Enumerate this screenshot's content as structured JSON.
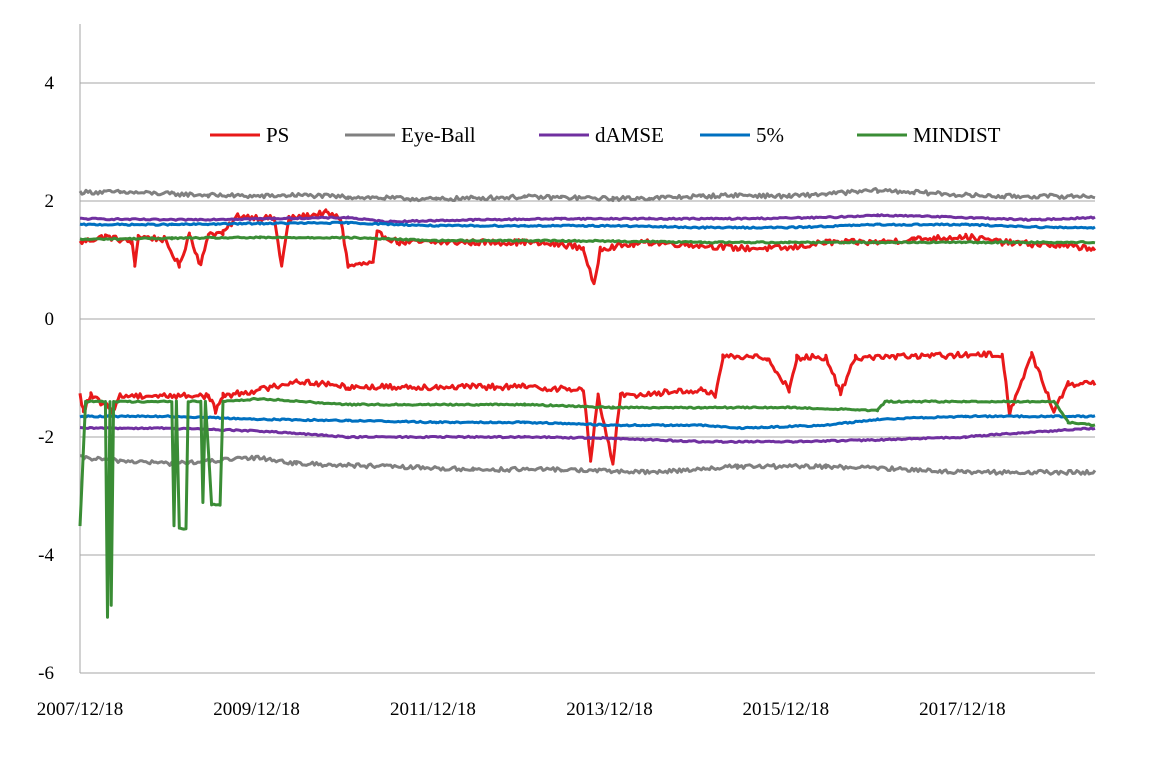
{
  "chart_data": {
    "type": "line",
    "x_type": "date",
    "title": "",
    "xlabel": "",
    "ylabel": "",
    "ylim": [
      -6,
      5
    ],
    "yticks": [
      4,
      2,
      0,
      -2,
      -4,
      -6
    ],
    "ytick_labels": [
      "4",
      "2",
      "0",
      "-2",
      "-4",
      "-6"
    ],
    "xlim": [
      "2007/12/18",
      "2019/06/20"
    ],
    "xticks": [
      "2007/12/18",
      "2009/12/18",
      "2011/12/18",
      "2013/12/18",
      "2015/12/18",
      "2017/12/18"
    ],
    "xtick_labels": [
      "2007/12/18",
      "2009/12/18",
      "2011/12/18",
      "2013/12/18",
      "2015/12/18",
      "2017/12/18"
    ],
    "grid": "horizontal",
    "legend_position": "top-center",
    "series": [
      {
        "name": "PS",
        "color": "#e8191a",
        "band": "upper",
        "points": [
          [
            "2007/12/18",
            1.3
          ],
          [
            "2008/04/01",
            1.4
          ],
          [
            "2008/07/20",
            1.3
          ],
          [
            "2008/08/01",
            0.9
          ],
          [
            "2008/08/15",
            1.4
          ],
          [
            "2008/12/01",
            1.35
          ],
          [
            "2009/02/01",
            0.9
          ],
          [
            "2009/03/15",
            1.45
          ],
          [
            "2009/05/01",
            0.9
          ],
          [
            "2009/06/01",
            1.45
          ],
          [
            "2009/08/01",
            1.45
          ],
          [
            "2009/10/01",
            1.75
          ],
          [
            "2010/03/01",
            1.7
          ],
          [
            "2010/04/01",
            0.9
          ],
          [
            "2010/05/01",
            1.7
          ],
          [
            "2010/10/01",
            1.8
          ],
          [
            "2010/12/01",
            1.7
          ],
          [
            "2011/01/01",
            0.9
          ],
          [
            "2011/04/15",
            0.95
          ],
          [
            "2011/05/01",
            1.45
          ],
          [
            "2011/08/01",
            1.3
          ],
          [
            "2012/06/01",
            1.3
          ],
          [
            "2013/01/01",
            1.3
          ],
          [
            "2013/07/01",
            1.25
          ],
          [
            "2013/09/01",
            1.2
          ],
          [
            "2013/10/15",
            0.55
          ],
          [
            "2013/11/10",
            1.2
          ],
          [
            "2014/06/01",
            1.3
          ],
          [
            "2015/01/01",
            1.25
          ],
          [
            "2015/06/01",
            1.2
          ],
          [
            "2016/01/01",
            1.2
          ],
          [
            "2016/06/01",
            1.3
          ],
          [
            "2017/01/01",
            1.3
          ],
          [
            "2017/06/01",
            1.35
          ],
          [
            "2018/01/01",
            1.4
          ],
          [
            "2018/06/01",
            1.3
          ],
          [
            "2019/01/01",
            1.25
          ],
          [
            "2019/06/20",
            1.2
          ]
        ]
      },
      {
        "name": "Eye-Ball",
        "color": "#808080",
        "band": "upper",
        "points": [
          [
            "2007/12/18",
            2.15
          ],
          [
            "2008/06/01",
            2.15
          ],
          [
            "2009/01/01",
            2.12
          ],
          [
            "2009/06/01",
            2.1
          ],
          [
            "2010/01/01",
            2.08
          ],
          [
            "2010/06/01",
            2.1
          ],
          [
            "2011/01/01",
            2.07
          ],
          [
            "2011/06/01",
            2.05
          ],
          [
            "2012/01/01",
            2.03
          ],
          [
            "2012/06/01",
            2.05
          ],
          [
            "2013/01/01",
            2.07
          ],
          [
            "2013/06/01",
            2.06
          ],
          [
            "2014/01/01",
            2.04
          ],
          [
            "2014/06/01",
            2.05
          ],
          [
            "2015/01/01",
            2.08
          ],
          [
            "2015/06/01",
            2.1
          ],
          [
            "2016/01/01",
            2.08
          ],
          [
            "2016/06/01",
            2.12
          ],
          [
            "2017/01/01",
            2.18
          ],
          [
            "2017/06/01",
            2.15
          ],
          [
            "2018/01/01",
            2.1
          ],
          [
            "2018/06/01",
            2.08
          ],
          [
            "2019/01/01",
            2.08
          ],
          [
            "2019/06/20",
            2.08
          ]
        ]
      },
      {
        "name": "dAMSE",
        "color": "#7030a0",
        "band": "upper",
        "points": [
          [
            "2007/12/18",
            1.7
          ],
          [
            "2009/01/01",
            1.68
          ],
          [
            "2010/01/01",
            1.7
          ],
          [
            "2011/01/01",
            1.72
          ],
          [
            "2011/06/01",
            1.65
          ],
          [
            "2012/06/01",
            1.68
          ],
          [
            "2013/06/01",
            1.7
          ],
          [
            "2014/06/01",
            1.7
          ],
          [
            "2015/06/01",
            1.7
          ],
          [
            "2016/06/01",
            1.72
          ],
          [
            "2017/01/01",
            1.76
          ],
          [
            "2018/01/01",
            1.72
          ],
          [
            "2018/10/01",
            1.68
          ],
          [
            "2019/06/20",
            1.72
          ]
        ]
      },
      {
        "name": "5%",
        "color": "#0070c0",
        "band": "upper",
        "points": [
          [
            "2007/12/18",
            1.6
          ],
          [
            "2009/01/01",
            1.6
          ],
          [
            "2010/01/01",
            1.62
          ],
          [
            "2011/01/01",
            1.63
          ],
          [
            "2012/01/01",
            1.58
          ],
          [
            "2013/01/01",
            1.58
          ],
          [
            "2014/01/01",
            1.58
          ],
          [
            "2015/01/01",
            1.55
          ],
          [
            "2016/01/01",
            1.55
          ],
          [
            "2017/01/01",
            1.6
          ],
          [
            "2018/01/01",
            1.6
          ],
          [
            "2019/01/01",
            1.55
          ],
          [
            "2019/06/20",
            1.55
          ]
        ]
      },
      {
        "name": "MINDIST",
        "color": "#3a8d35",
        "band": "upper",
        "points": [
          [
            "2007/12/18",
            1.35
          ],
          [
            "2009/01/01",
            1.37
          ],
          [
            "2010/01/01",
            1.38
          ],
          [
            "2011/01/01",
            1.38
          ],
          [
            "2012/01/01",
            1.33
          ],
          [
            "2013/01/01",
            1.33
          ],
          [
            "2014/01/01",
            1.32
          ],
          [
            "2015/01/01",
            1.3
          ],
          [
            "2016/01/01",
            1.3
          ],
          [
            "2017/01/01",
            1.3
          ],
          [
            "2018/01/01",
            1.3
          ],
          [
            "2019/06/20",
            1.3
          ]
        ]
      },
      {
        "name": "PS",
        "color": "#e8191a",
        "band": "lower",
        "points": [
          [
            "2007/12/18",
            -1.3
          ],
          [
            "2008/01/01",
            -1.55
          ],
          [
            "2008/02/01",
            -1.3
          ],
          [
            "2008/05/01",
            -1.55
          ],
          [
            "2008/06/01",
            -1.3
          ],
          [
            "2009/06/01",
            -1.3
          ],
          [
            "2009/07/01",
            -1.55
          ],
          [
            "2009/08/01",
            -1.3
          ],
          [
            "2010/01/01",
            -1.2
          ],
          [
            "2010/06/01",
            -1.05
          ],
          [
            "2011/01/01",
            -1.15
          ],
          [
            "2012/01/01",
            -1.15
          ],
          [
            "2013/01/01",
            -1.15
          ],
          [
            "2013/09/01",
            -1.2
          ],
          [
            "2013/10/01",
            -2.4
          ],
          [
            "2013/11/01",
            -1.3
          ],
          [
            "2014/01/01",
            -2.45
          ],
          [
            "2014/02/01",
            -1.3
          ],
          [
            "2015/01/01",
            -1.2
          ],
          [
            "2015/03/01",
            -1.3
          ],
          [
            "2015/04/01",
            -0.65
          ],
          [
            "2015/10/01",
            -0.65
          ],
          [
            "2016/01/01",
            -1.2
          ],
          [
            "2016/02/01",
            -0.65
          ],
          [
            "2016/06/01",
            -0.65
          ],
          [
            "2016/08/01",
            -1.25
          ],
          [
            "2016/10/01",
            -0.65
          ],
          [
            "2018/06/01",
            -0.6
          ],
          [
            "2018/07/01",
            -1.6
          ],
          [
            "2018/10/01",
            -0.6
          ],
          [
            "2019/01/01",
            -1.55
          ],
          [
            "2019/03/01",
            -1.1
          ],
          [
            "2019/06/20",
            -1.1
          ]
        ]
      },
      {
        "name": "Eye-Ball",
        "color": "#808080",
        "band": "lower",
        "points": [
          [
            "2007/12/18",
            -2.35
          ],
          [
            "2008/06/01",
            -2.4
          ],
          [
            "2009/01/01",
            -2.45
          ],
          [
            "2010/01/01",
            -2.35
          ],
          [
            "2010/06/01",
            -2.45
          ],
          [
            "2011/06/01",
            -2.5
          ],
          [
            "2012/06/01",
            -2.55
          ],
          [
            "2013/06/01",
            -2.55
          ],
          [
            "2014/06/01",
            -2.6
          ],
          [
            "2015/06/01",
            -2.5
          ],
          [
            "2016/06/01",
            -2.5
          ],
          [
            "2017/06/01",
            -2.55
          ],
          [
            "2018/01/01",
            -2.6
          ],
          [
            "2018/06/01",
            -2.6
          ],
          [
            "2019/06/20",
            -2.6
          ]
        ]
      },
      {
        "name": "dAMSE",
        "color": "#7030a0",
        "band": "lower",
        "points": [
          [
            "2007/12/18",
            -1.85
          ],
          [
            "2009/01/01",
            -1.85
          ],
          [
            "2010/01/01",
            -1.9
          ],
          [
            "2011/01/01",
            -2.0
          ],
          [
            "2012/01/01",
            -2.0
          ],
          [
            "2013/01/01",
            -2.0
          ],
          [
            "2014/01/01",
            -2.02
          ],
          [
            "2015/01/01",
            -2.08
          ],
          [
            "2016/01/01",
            -2.08
          ],
          [
            "2017/01/01",
            -2.05
          ],
          [
            "2018/01/01",
            -2.0
          ],
          [
            "2018/06/01",
            -1.95
          ],
          [
            "2019/06/20",
            -1.85
          ]
        ]
      },
      {
        "name": "5%",
        "color": "#0070c0",
        "band": "lower",
        "points": [
          [
            "2007/12/18",
            -1.65
          ],
          [
            "2009/01/01",
            -1.65
          ],
          [
            "2010/01/01",
            -1.7
          ],
          [
            "2011/01/01",
            -1.72
          ],
          [
            "2012/01/01",
            -1.75
          ],
          [
            "2013/01/01",
            -1.75
          ],
          [
            "2014/01/01",
            -1.8
          ],
          [
            "2015/01/01",
            -1.8
          ],
          [
            "2015/06/01",
            -1.85
          ],
          [
            "2016/06/01",
            -1.8
          ],
          [
            "2017/01/01",
            -1.7
          ],
          [
            "2018/01/01",
            -1.65
          ],
          [
            "2019/06/20",
            -1.65
          ]
        ]
      },
      {
        "name": "MINDIST",
        "color": "#3a8d35",
        "band": "lower",
        "points": [
          [
            "2007/12/18",
            -3.5
          ],
          [
            "2008/01/10",
            -1.4
          ],
          [
            "2008/04/01",
            -1.4
          ],
          [
            "2008/04/10",
            -5.05
          ],
          [
            "2008/04/20",
            -1.4
          ],
          [
            "2008/04/25",
            -4.85
          ],
          [
            "2008/05/05",
            -1.4
          ],
          [
            "2009/01/01",
            -1.4
          ],
          [
            "2009/01/10",
            -3.5
          ],
          [
            "2009/01/20",
            -1.4
          ],
          [
            "2009/02/01",
            -3.55
          ],
          [
            "2009/03/01",
            -3.55
          ],
          [
            "2009/03/10",
            -1.4
          ],
          [
            "2009/05/01",
            -1.4
          ],
          [
            "2009/05/10",
            -3.1
          ],
          [
            "2009/05/20",
            -1.4
          ],
          [
            "2009/06/15",
            -3.15
          ],
          [
            "2009/07/20",
            -3.15
          ],
          [
            "2009/08/01",
            -1.4
          ],
          [
            "2010/01/01",
            -1.35
          ],
          [
            "2011/01/01",
            -1.45
          ],
          [
            "2012/01/01",
            -1.45
          ],
          [
            "2013/01/01",
            -1.45
          ],
          [
            "2014/01/01",
            -1.5
          ],
          [
            "2015/01/01",
            -1.5
          ],
          [
            "2016/01/01",
            -1.5
          ],
          [
            "2017/01/01",
            -1.55
          ],
          [
            "2017/02/01",
            -1.4
          ],
          [
            "2018/01/01",
            -1.4
          ],
          [
            "2019/01/01",
            -1.4
          ],
          [
            "2019/03/01",
            -1.75
          ],
          [
            "2019/06/20",
            -1.8
          ]
        ]
      }
    ],
    "legend": [
      {
        "name": "PS",
        "color": "#e8191a"
      },
      {
        "name": "Eye-Ball",
        "color": "#808080"
      },
      {
        "name": "dAMSE",
        "color": "#7030a0"
      },
      {
        "name": "5%",
        "color": "#0070c0"
      },
      {
        "name": "MINDIST",
        "color": "#3a8d35"
      }
    ]
  }
}
